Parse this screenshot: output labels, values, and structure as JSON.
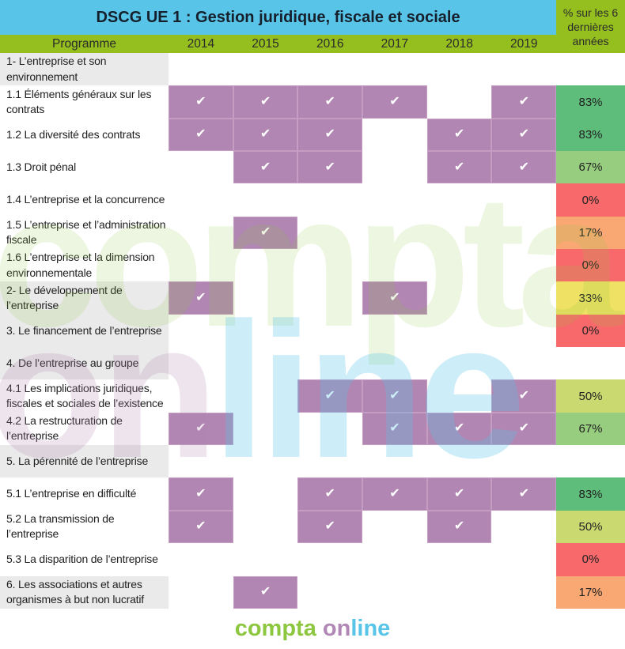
{
  "header": {
    "program_label": "Programme"
  },
  "chart_data": {
    "type": "heatmap",
    "title": "DSCG UE 1 : Gestion juridique, fiscale et sociale",
    "value_column": "% sur les 6 dernières années",
    "columns": [
      "2014",
      "2015",
      "2016",
      "2017",
      "2018",
      "2019"
    ],
    "check_glyph": "✔",
    "legend_position": "none",
    "colors": {
      "header_blue": "#58c4e8",
      "header_green": "#95bf1f",
      "check_purple": "#b186b2",
      "section_gray": "#eaeaea",
      "scale": {
        "0%": "#f8696b",
        "17%": "#f9a873",
        "33%": "#eee163",
        "50%": "#cbda70",
        "67%": "#97cd7e",
        "83%": "#5fbd7b"
      }
    },
    "rows": [
      {
        "label": "1- L’entreprise et son environnement",
        "section": true,
        "checks": [
          0,
          0,
          0,
          0,
          0,
          0
        ],
        "percent": null,
        "percent_color": null
      },
      {
        "label": "1.1 Éléments généraux sur les contrats",
        "section": false,
        "checks": [
          1,
          1,
          1,
          1,
          0,
          1
        ],
        "percent": "83%",
        "percent_color": "#5fbd7b"
      },
      {
        "label": "1.2 La diversité des contrats",
        "section": false,
        "checks": [
          1,
          1,
          1,
          0,
          1,
          1
        ],
        "percent": "83%",
        "percent_color": "#5fbd7b"
      },
      {
        "label": "1.3 Droit pénal",
        "section": false,
        "checks": [
          0,
          1,
          1,
          0,
          1,
          1
        ],
        "percent": "67%",
        "percent_color": "#97cd7e"
      },
      {
        "label": "1.4 L’entreprise et la concurrence",
        "section": false,
        "checks": [
          0,
          0,
          0,
          0,
          0,
          0
        ],
        "percent": "0%",
        "percent_color": "#f8696b"
      },
      {
        "label": "1.5 L’entreprise et l’administration fiscale",
        "section": false,
        "checks": [
          0,
          1,
          0,
          0,
          0,
          0
        ],
        "percent": "17%",
        "percent_color": "#f9a873"
      },
      {
        "label": "1.6 L’entreprise et la dimension environnementale",
        "section": false,
        "checks": [
          0,
          0,
          0,
          0,
          0,
          0
        ],
        "percent": "0%",
        "percent_color": "#f8696b"
      },
      {
        "label": "2- Le développement de l’entreprise",
        "section": true,
        "checks": [
          1,
          0,
          0,
          1,
          0,
          0
        ],
        "percent": "33%",
        "percent_color": "#eee163"
      },
      {
        "label": "3. Le financement de l’entreprise",
        "section": true,
        "checks": [
          0,
          0,
          0,
          0,
          0,
          0
        ],
        "percent": "0%",
        "percent_color": "#f8696b"
      },
      {
        "label": "4. De l’entreprise au groupe",
        "section": true,
        "checks": [
          0,
          0,
          0,
          0,
          0,
          0
        ],
        "percent": null,
        "percent_color": null
      },
      {
        "label": "4.1 Les implications juridiques, fiscales et sociales de l’existence",
        "section": false,
        "checks": [
          0,
          0,
          1,
          1,
          0,
          1
        ],
        "percent": "50%",
        "percent_color": "#cbda70"
      },
      {
        "label": "4.2 La restructuration de l’entreprise",
        "section": false,
        "checks": [
          1,
          0,
          0,
          1,
          1,
          1
        ],
        "percent": "67%",
        "percent_color": "#97cd7e"
      },
      {
        "label": "5. La pérennité de l’entreprise",
        "section": true,
        "checks": [
          0,
          0,
          0,
          0,
          0,
          0
        ],
        "percent": null,
        "percent_color": null
      },
      {
        "label": "5.1  L’entreprise en difficulté",
        "section": false,
        "checks": [
          1,
          0,
          1,
          1,
          1,
          1
        ],
        "percent": "83%",
        "percent_color": "#5fbd7b"
      },
      {
        "label": "5.2 La transmission de l’entreprise",
        "section": false,
        "checks": [
          1,
          0,
          1,
          0,
          1,
          0
        ],
        "percent": "50%",
        "percent_color": "#cbda70"
      },
      {
        "label": "5.3 La disparition de l’entreprise",
        "section": false,
        "checks": [
          0,
          0,
          0,
          0,
          0,
          0
        ],
        "percent": "0%",
        "percent_color": "#f8696b"
      },
      {
        "label": "6. Les associations et autres organismes à but non lucratif",
        "section": true,
        "checks": [
          0,
          1,
          0,
          0,
          0,
          0
        ],
        "percent": "17%",
        "percent_color": "#f9a873"
      }
    ]
  },
  "watermark": {
    "compta": "compta",
    "on": "on",
    "line": "line"
  },
  "logo": {
    "compta": "compta",
    "on": "on",
    "line": "line"
  }
}
